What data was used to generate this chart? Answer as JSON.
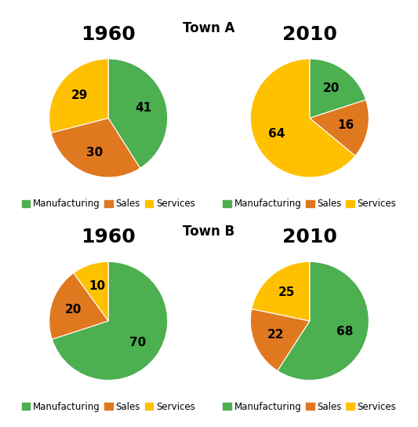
{
  "title_a": "Town A",
  "title_b": "Town B",
  "charts": [
    {
      "title": "1960",
      "values": [
        41,
        30,
        29
      ],
      "colors": [
        "#4CAF50",
        "#E07820",
        "#FFC000"
      ],
      "startangle": 90,
      "counterclock": false
    },
    {
      "title": "2010",
      "values": [
        20,
        16,
        64
      ],
      "colors": [
        "#4CAF50",
        "#E07820",
        "#FFC000"
      ],
      "startangle": 90,
      "counterclock": false
    },
    {
      "title": "1960",
      "values": [
        70,
        20,
        10
      ],
      "colors": [
        "#4CAF50",
        "#E07820",
        "#FFC000"
      ],
      "startangle": 90,
      "counterclock": false
    },
    {
      "title": "2010",
      "values": [
        68,
        22,
        25
      ],
      "colors": [
        "#4CAF50",
        "#E07820",
        "#FFC000"
      ],
      "startangle": 90,
      "counterclock": false
    }
  ],
  "legend_labels": [
    "Manufacturing",
    "Sales",
    "Services"
  ],
  "legend_colors": [
    "#4CAF50",
    "#E07820",
    "#FFC000"
  ],
  "year_fontsize": 18,
  "label_fontsize": 11,
  "legend_fontsize": 8.5,
  "row_title_fontsize": 12,
  "background_color": "#FFFFFF"
}
